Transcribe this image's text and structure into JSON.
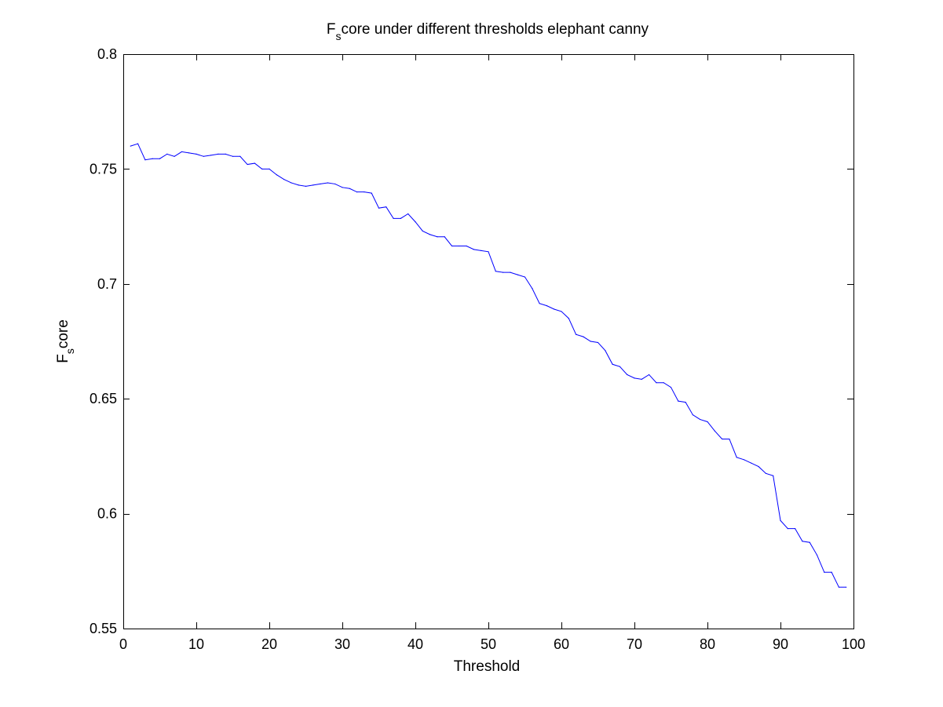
{
  "chart_data": {
    "type": "line",
    "title": {
      "base": "F",
      "sub": "s",
      "rest": "core under different thresholds elephant canny"
    },
    "xlabel": "Threshold",
    "ylabel": {
      "base": "F",
      "sub": "s",
      "rest": "core"
    },
    "xlim": [
      0,
      100
    ],
    "ylim": [
      0.55,
      0.8
    ],
    "xticks": [
      0,
      10,
      20,
      30,
      40,
      50,
      60,
      70,
      80,
      90,
      100
    ],
    "xtick_labels": [
      "0",
      "10",
      "20",
      "30",
      "40",
      "50",
      "60",
      "70",
      "80",
      "90",
      "100"
    ],
    "yticks": [
      0.55,
      0.6,
      0.65,
      0.7,
      0.75,
      0.8
    ],
    "ytick_labels": [
      "0.55",
      "0.6",
      "0.65",
      "0.7",
      "0.75",
      "0.8"
    ],
    "grid": false,
    "series": [
      {
        "color": "#0000ff",
        "x": [
          1,
          2,
          3,
          4,
          5,
          6,
          7,
          8,
          9,
          10,
          11,
          12,
          13,
          14,
          15,
          16,
          17,
          18,
          19,
          20,
          21,
          22,
          23,
          24,
          25,
          26,
          27,
          28,
          29,
          30,
          31,
          32,
          33,
          34,
          35,
          36,
          37,
          38,
          39,
          40,
          41,
          42,
          43,
          44,
          45,
          46,
          47,
          48,
          49,
          50,
          51,
          52,
          53,
          54,
          55,
          56,
          57,
          58,
          59,
          60,
          61,
          62,
          63,
          64,
          65,
          66,
          67,
          68,
          69,
          70,
          71,
          72,
          73,
          74,
          75,
          76,
          77,
          78,
          79,
          80,
          81,
          82,
          83,
          84,
          85,
          86,
          87,
          88,
          89,
          90,
          91,
          92,
          93,
          94,
          95,
          96,
          97,
          98,
          99
        ],
        "y": [
          0.76,
          0.761,
          0.754,
          0.7545,
          0.7545,
          0.7565,
          0.7555,
          0.7575,
          0.757,
          0.7565,
          0.7555,
          0.756,
          0.7565,
          0.7565,
          0.7555,
          0.7555,
          0.752,
          0.7525,
          0.75,
          0.75,
          0.7475,
          0.7455,
          0.744,
          0.743,
          0.7425,
          0.743,
          0.7435,
          0.744,
          0.7435,
          0.742,
          0.7415,
          0.74,
          0.74,
          0.7395,
          0.733,
          0.7335,
          0.7285,
          0.7285,
          0.7305,
          0.727,
          0.723,
          0.7215,
          0.7205,
          0.7205,
          0.7165,
          0.7165,
          0.7165,
          0.715,
          0.7145,
          0.714,
          0.7055,
          0.705,
          0.705,
          0.704,
          0.703,
          0.698,
          0.6915,
          0.6905,
          0.689,
          0.688,
          0.685,
          0.678,
          0.677,
          0.675,
          0.6745,
          0.671,
          0.665,
          0.664,
          0.6605,
          0.659,
          0.6585,
          0.6605,
          0.657,
          0.657,
          0.655,
          0.649,
          0.6485,
          0.643,
          0.641,
          0.64,
          0.636,
          0.6325,
          0.6325,
          0.6245,
          0.6235,
          0.622,
          0.6205,
          0.6175,
          0.6165,
          0.597,
          0.5935,
          0.5935,
          0.588,
          0.5875,
          0.582,
          0.5745,
          0.5745,
          0.568,
          0.568
        ]
      }
    ]
  }
}
